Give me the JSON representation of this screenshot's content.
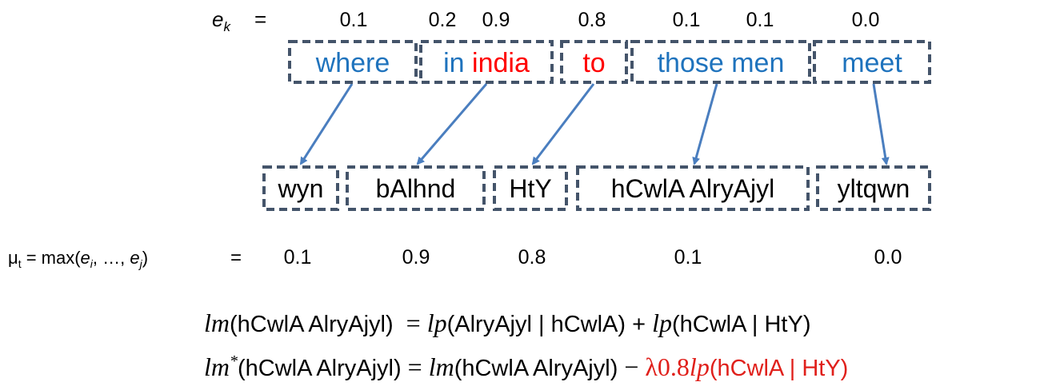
{
  "ek_label": {
    "base": "e",
    "sub": "k",
    "eq": "="
  },
  "ek_values": [
    "0.1",
    "0.2",
    "0.9",
    "0.8",
    "0.1",
    "0.1",
    "0.0"
  ],
  "source": [
    {
      "words": [
        {
          "text": "where",
          "color": "#1f73bd"
        }
      ]
    },
    {
      "words": [
        {
          "text": "in",
          "color": "#1f73bd"
        },
        {
          "text": "india",
          "color": "#ff0000"
        }
      ]
    },
    {
      "words": [
        {
          "text": "to",
          "color": "#ff0000"
        }
      ]
    },
    {
      "words": [
        {
          "text": "those men",
          "color": "#1f73bd"
        }
      ]
    },
    {
      "words": [
        {
          "text": "meet",
          "color": "#1f73bd"
        }
      ]
    }
  ],
  "target": [
    "wyn",
    "bAlhnd",
    "HtY",
    "hCwlA AlryAjyl",
    "yltqwn"
  ],
  "mu_label": {
    "parts": [
      {
        "text": "μ"
      },
      {
        "text": "t",
        "sub": true
      },
      {
        "text": " = max("
      },
      {
        "text": "e",
        "italic": true
      },
      {
        "text": "i",
        "sub": true,
        "italic": true
      },
      {
        "text": ", …, "
      },
      {
        "text": "e",
        "italic": true
      },
      {
        "text": "j",
        "sub": true,
        "italic": true
      },
      {
        "text": ")"
      }
    ],
    "eq": "="
  },
  "mu_values": [
    "0.1",
    "0.9",
    "0.8",
    "0.1",
    "0.0"
  ],
  "equations": [
    [
      {
        "text": "lm",
        "style": "math"
      },
      {
        "text": "(hCwlA AlryAjyl)",
        "style": "sans"
      },
      {
        "text": "  = ",
        "style": "serif"
      },
      {
        "text": "lp",
        "style": "math"
      },
      {
        "text": "(AlryAjyl | hCwlA) + ",
        "style": "sans"
      },
      {
        "text": "lp",
        "style": "math"
      },
      {
        "text": "(hCwlA | HtY)",
        "style": "sans"
      }
    ],
    [
      {
        "text": "lm",
        "style": "math"
      },
      {
        "text": "*",
        "style": "math",
        "sup": true
      },
      {
        "text": "(hCwlA AlryAjyl)",
        "style": "sans"
      },
      {
        "text": " = ",
        "style": "serif"
      },
      {
        "text": "lm",
        "style": "math"
      },
      {
        "text": "(hCwlA AlryAjyl)",
        "style": "sans"
      },
      {
        "text": " − ",
        "style": "serif"
      },
      {
        "text": "λ0.8",
        "style": "serif",
        "color": "#e0201b"
      },
      {
        "text": "lp",
        "style": "math",
        "color": "#e0201b"
      },
      {
        "text": "(hCwlA | HtY)",
        "style": "sans",
        "color": "#e0201b"
      }
    ]
  ]
}
